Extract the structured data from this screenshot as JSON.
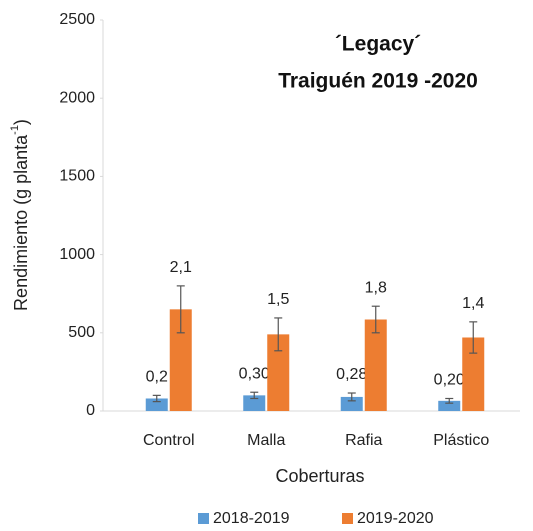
{
  "chart_data": {
    "type": "bar",
    "title": [
      "´Legacy´",
      "Traiguén 2019 -2020"
    ],
    "ylabel": [
      "Rendimiento (g planta",
      "-1",
      ")"
    ],
    "xlabel": "Coberturas",
    "categories": [
      "Control",
      "Malla",
      "Rafia",
      "Plástico"
    ],
    "series": [
      {
        "name": "2018-2019",
        "color": "#5b9bd5",
        "values": [
          80,
          100,
          90,
          65
        ],
        "errors": [
          20,
          20,
          25,
          15
        ],
        "annotations": [
          "0,2",
          "0,30",
          "0,28",
          "0,20"
        ]
      },
      {
        "name": "2019-2020",
        "color": "#ed7d31",
        "values": [
          650,
          490,
          585,
          470
        ],
        "errors": [
          150,
          105,
          85,
          100
        ],
        "annotations": [
          "2,1",
          "1,5",
          "1,8",
          "1,4"
        ]
      }
    ],
    "ylim": [
      0,
      2500
    ],
    "yticks": [
      0,
      500,
      1000,
      1500,
      2000,
      2500
    ],
    "legend": "bottom"
  }
}
